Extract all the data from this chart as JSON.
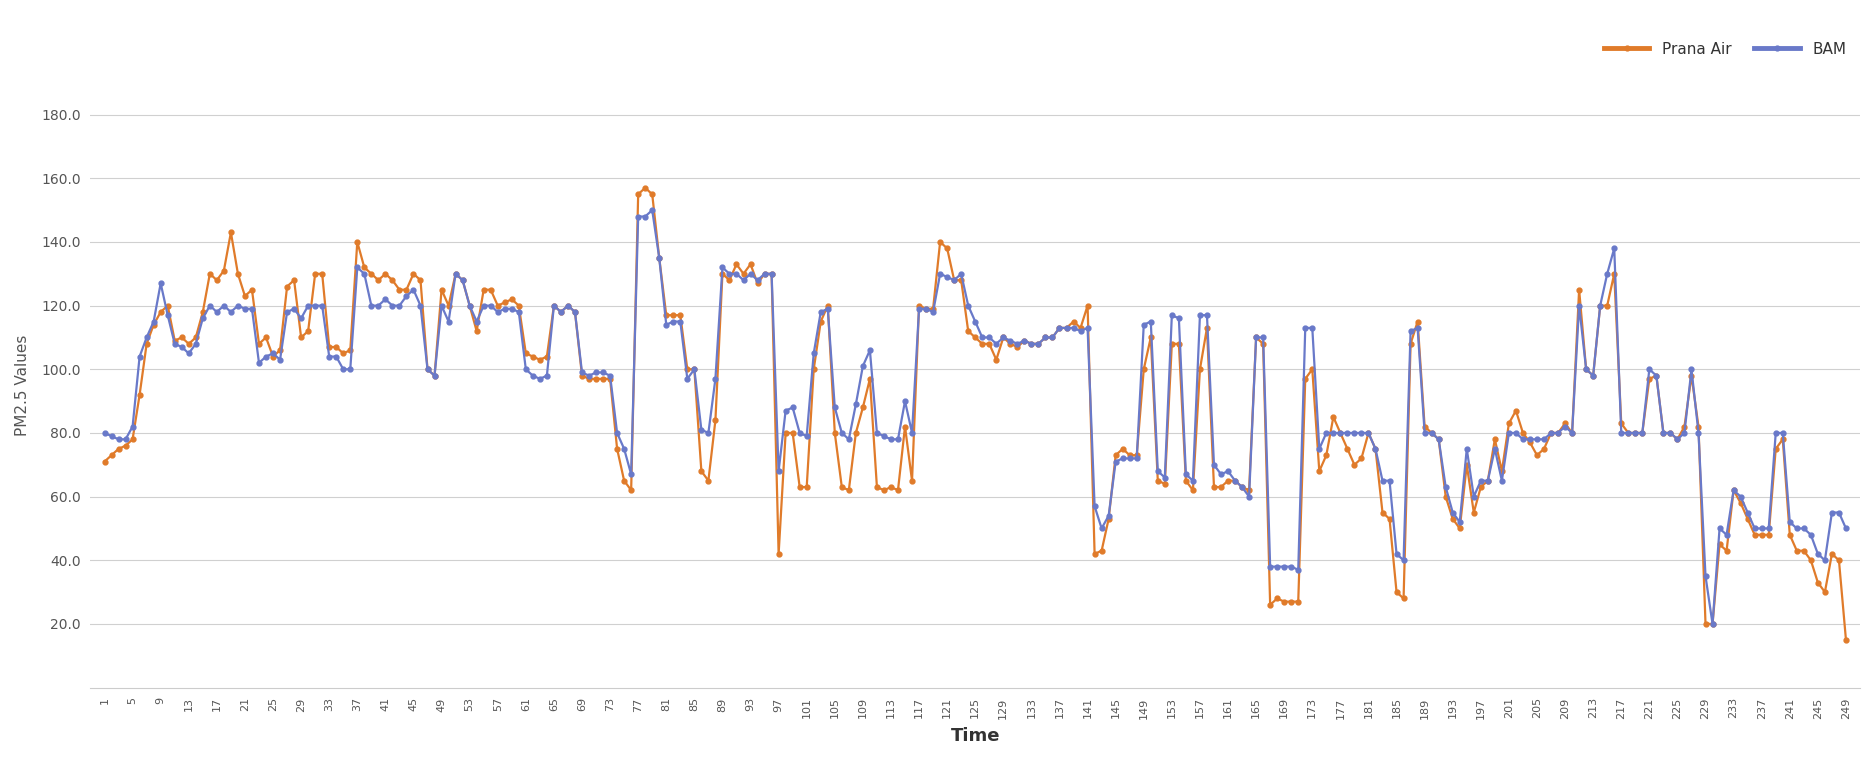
{
  "bam": [
    80,
    79,
    78,
    78,
    82,
    104,
    110,
    115,
    127,
    117,
    108,
    107,
    105,
    108,
    116,
    120,
    118,
    120,
    118,
    120,
    119,
    119,
    102,
    104,
    105,
    103,
    118,
    119,
    116,
    120,
    120,
    120,
    104,
    104,
    100,
    100,
    132,
    130,
    120,
    120,
    122,
    120,
    120,
    123,
    125,
    120,
    100,
    98,
    120,
    115,
    130,
    128,
    120,
    115,
    120,
    120,
    118,
    119,
    119,
    118,
    100,
    98,
    97,
    98,
    120,
    118,
    120,
    118,
    99,
    98,
    99,
    99,
    98,
    80,
    75,
    67,
    148,
    148,
    150,
    135,
    114,
    115,
    115,
    97,
    100,
    81,
    80,
    97,
    132,
    130,
    130,
    128,
    130,
    128,
    130,
    130,
    68,
    87,
    88,
    80,
    79,
    105,
    118,
    119,
    88,
    80,
    78,
    89,
    101,
    106,
    80,
    79,
    78,
    78,
    90,
    80,
    119,
    119,
    118,
    130,
    129,
    128,
    130,
    120,
    115,
    110,
    110,
    108,
    110,
    109,
    108,
    109,
    108,
    108,
    110,
    110,
    113,
    113,
    113,
    112,
    113,
    57,
    50,
    54,
    71,
    72,
    72,
    72,
    114,
    115,
    68,
    66,
    117,
    116,
    67,
    65,
    117,
    117,
    70,
    67,
    68,
    65,
    63,
    60,
    110,
    110,
    38,
    38,
    38,
    38,
    37,
    113,
    113,
    75,
    80,
    80,
    80,
    80,
    80,
    80,
    80,
    75,
    65,
    65,
    42,
    40,
    112,
    113,
    80,
    80,
    78,
    63,
    55,
    52,
    75,
    60,
    65,
    65,
    75,
    65,
    80,
    80,
    78,
    78,
    78,
    78,
    80,
    80,
    82,
    80,
    120,
    100,
    98,
    120,
    130,
    138,
    80,
    80,
    80,
    80,
    100,
    98,
    80,
    80,
    78,
    80,
    100,
    80,
    35,
    20,
    50,
    48,
    62,
    60,
    55,
    50,
    50,
    50,
    80,
    80,
    52,
    50,
    50,
    48,
    42,
    40,
    55,
    55,
    50
  ],
  "prana": [
    71,
    73,
    75,
    76,
    78,
    92,
    108,
    114,
    118,
    120,
    109,
    110,
    108,
    110,
    118,
    130,
    128,
    131,
    143,
    130,
    123,
    125,
    108,
    110,
    104,
    106,
    126,
    128,
    110,
    112,
    130,
    130,
    107,
    107,
    105,
    106,
    140,
    132,
    130,
    128,
    130,
    128,
    125,
    125,
    130,
    128,
    100,
    98,
    125,
    120,
    130,
    128,
    120,
    112,
    125,
    125,
    120,
    121,
    122,
    120,
    105,
    104,
    103,
    104,
    120,
    118,
    120,
    118,
    98,
    97,
    97,
    97,
    97,
    75,
    65,
    62,
    155,
    157,
    155,
    135,
    117,
    117,
    117,
    100,
    100,
    68,
    65,
    84,
    130,
    128,
    133,
    130,
    133,
    127,
    130,
    130,
    42,
    80,
    80,
    63,
    63,
    100,
    115,
    120,
    80,
    63,
    62,
    80,
    88,
    97,
    63,
    62,
    63,
    62,
    82,
    65,
    120,
    119,
    119,
    140,
    138,
    128,
    128,
    112,
    110,
    108,
    108,
    103,
    110,
    108,
    107,
    109,
    108,
    108,
    110,
    110,
    113,
    113,
    115,
    113,
    120,
    42,
    43,
    53,
    73,
    75,
    73,
    73,
    100,
    110,
    65,
    64,
    108,
    108,
    65,
    62,
    100,
    113,
    63,
    63,
    65,
    65,
    63,
    62,
    110,
    108,
    26,
    28,
    27,
    27,
    27,
    97,
    100,
    68,
    73,
    85,
    80,
    75,
    70,
    72,
    80,
    75,
    55,
    53,
    30,
    28,
    108,
    115,
    82,
    80,
    78,
    60,
    53,
    50,
    70,
    55,
    63,
    65,
    78,
    68,
    83,
    87,
    80,
    77,
    73,
    75,
    80,
    80,
    83,
    80,
    125,
    100,
    98,
    120,
    120,
    130,
    83,
    80,
    80,
    80,
    97,
    98,
    80,
    80,
    78,
    82,
    98,
    82,
    20,
    20,
    45,
    43,
    62,
    58,
    53,
    48,
    48,
    48,
    75,
    78,
    48,
    43,
    43,
    40,
    33,
    30,
    42,
    40,
    15
  ],
  "x_labels": [
    1,
    5,
    9,
    13,
    17,
    21,
    25,
    29,
    33,
    37,
    41,
    45,
    49,
    53,
    57,
    61,
    65,
    69,
    73,
    77,
    81,
    85,
    89,
    93,
    97,
    101,
    105,
    109,
    113,
    117,
    121,
    125,
    129,
    133,
    137,
    141,
    145,
    149,
    153,
    157,
    161,
    165,
    169,
    173,
    177,
    181,
    185,
    189,
    193,
    197,
    201,
    205,
    209,
    213,
    217,
    221,
    225,
    229,
    233,
    237,
    241,
    245,
    249
  ],
  "bam_color": "#6979c9",
  "prana_color": "#e07b2a",
  "ylabel": "PM2.5 Values",
  "xlabel": "Time",
  "ylim": [
    0,
    190
  ],
  "yticks": [
    20.0,
    40.0,
    60.0,
    80.0,
    100.0,
    120.0,
    140.0,
    160.0,
    180.0
  ],
  "legend_bam": "BAM",
  "legend_prana": "Prana Air",
  "bg_color": "#ffffff",
  "grid_color": "#d0d0d0",
  "line_width": 1.6,
  "marker_size": 3.5
}
